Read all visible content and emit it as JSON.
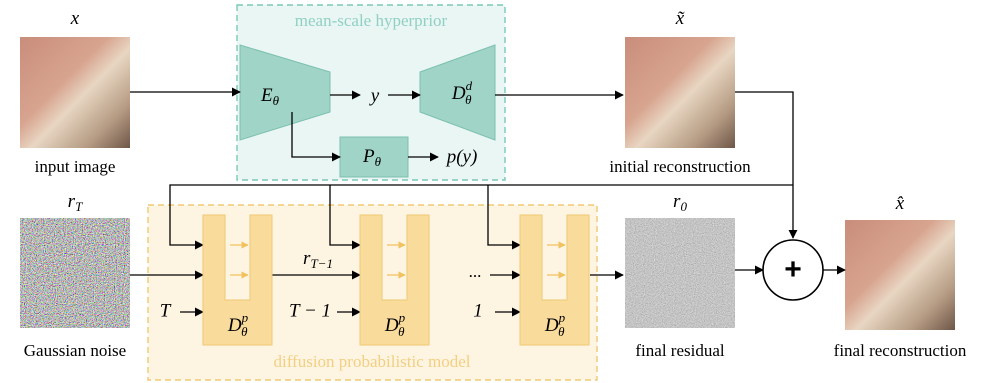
{
  "hyperprior": {
    "title": "mean-scale hyperprior",
    "encoder": {
      "base": "E",
      "sub": "θ"
    },
    "latent": "y",
    "decoder": {
      "base": "D",
      "sub": "θ",
      "sup": "d"
    },
    "prior": {
      "base": "P",
      "sub": "θ"
    },
    "likelihood": "p(y)"
  },
  "images": [
    {
      "symbol": {
        "base": "x"
      },
      "caption": "input image"
    },
    {
      "symbol": {
        "base": "x̃"
      },
      "caption": "initial reconstruction"
    },
    {
      "symbol": {
        "base": "r",
        "sub": "T"
      },
      "caption": "Gaussian noise"
    },
    {
      "symbol": {
        "base": "r",
        "sub": "0"
      },
      "caption": "final residual"
    },
    {
      "symbol": {
        "base": "x̂"
      },
      "caption": "final reconstruction"
    }
  ],
  "diffusion": {
    "title": "diffusion probabilistic model",
    "steps": [
      {
        "t": "T",
        "net": {
          "base": "D",
          "sub": "θ",
          "sup": "p"
        }
      },
      {
        "t": "T − 1",
        "net": {
          "base": "D",
          "sub": "θ",
          "sup": "p"
        }
      },
      {
        "t": "1",
        "net": {
          "base": "D",
          "sub": "θ",
          "sup": "p"
        }
      }
    ],
    "intermediate": {
      "base": "r",
      "sub": "T−1"
    },
    "ellipsis": "..."
  },
  "combine": "+"
}
